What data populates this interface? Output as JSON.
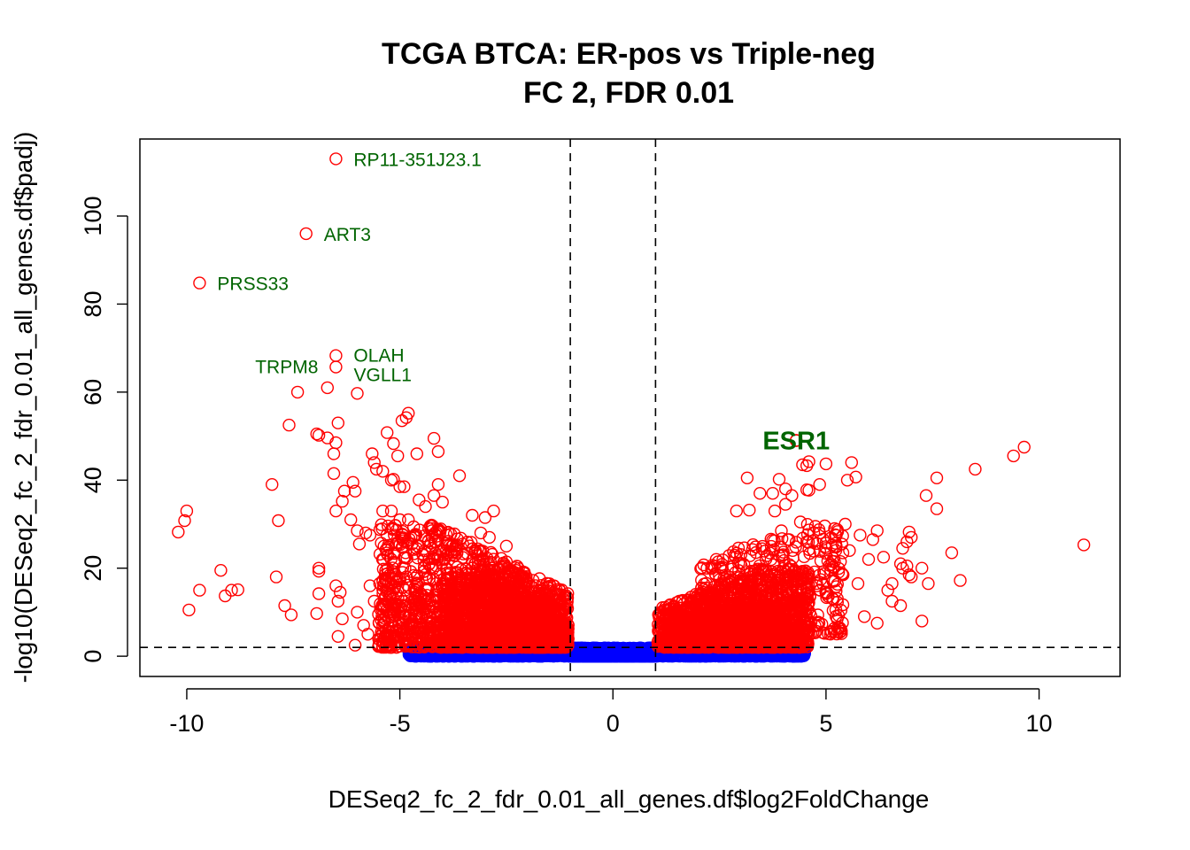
{
  "chart_data": {
    "type": "scatter",
    "title": "TCGA BTCA: ER-pos vs Triple-neg",
    "subtitle": "FC 2, FDR 0.01",
    "xlabel": "DESeq2_fc_2_fdr_0.01_all_genes.df$log2FoldChange",
    "ylabel": "-log10(DESeq2_fc_2_fdr_0.01_all_genes.df$padj)",
    "xlim": [
      -11.1,
      11.9
    ],
    "ylim": [
      -4.6,
      117.5
    ],
    "x_ticks": [
      -10,
      -5,
      0,
      5,
      10
    ],
    "y_ticks": [
      0,
      20,
      40,
      60,
      80,
      100
    ],
    "grid": false,
    "marker": "open-circle",
    "thresholds": {
      "log2fc": [
        -1,
        1
      ],
      "neg_log10_padj": 2
    },
    "colors": {
      "significant": "#ff0000",
      "not_significant": "#0000ff",
      "label": "#006400",
      "threshold_line": "#000000"
    },
    "labeled_genes": [
      {
        "name": "RP11-351J23.1",
        "x": -6.5,
        "y": 113.0,
        "size": "normal"
      },
      {
        "name": "ART3",
        "x": -7.2,
        "y": 96.0,
        "size": "normal"
      },
      {
        "name": "PRSS33",
        "x": -9.7,
        "y": 84.8,
        "size": "normal"
      },
      {
        "name": "OLAH",
        "x": -6.5,
        "y": 68.3,
        "size": "normal"
      },
      {
        "name": "TRPM8",
        "x": -6.5,
        "y": 65.7,
        "size": "normal"
      },
      {
        "name": "VGLL1",
        "x": -6.0,
        "y": 59.7,
        "size": "normal"
      },
      {
        "name": "ESR1",
        "x": 4.3,
        "y": 49.0,
        "size": "large"
      }
    ],
    "significant_points": [
      [
        -10.2,
        28.2
      ],
      [
        -10.0,
        33.0
      ],
      [
        -10.05,
        30.8
      ],
      [
        -9.95,
        10.5
      ],
      [
        -9.7,
        15.0
      ],
      [
        -9.2,
        19.5
      ],
      [
        -9.1,
        13.7
      ],
      [
        -8.95,
        15.0
      ],
      [
        -8.8,
        15.1
      ],
      [
        -8.0,
        39.0
      ],
      [
        -7.85,
        30.8
      ],
      [
        -7.9,
        18.0
      ],
      [
        -7.7,
        11.5
      ],
      [
        -7.55,
        9.4
      ],
      [
        -7.4,
        60.0
      ],
      [
        -7.6,
        52.5
      ],
      [
        -6.95,
        50.5
      ],
      [
        -6.9,
        50.2
      ],
      [
        -6.7,
        49.6
      ],
      [
        -6.5,
        48.5
      ],
      [
        -6.55,
        46.0
      ],
      [
        -6.55,
        41.5
      ],
      [
        -6.45,
        53.0
      ],
      [
        -6.5,
        33.0
      ],
      [
        -6.3,
        37.5
      ],
      [
        -6.35,
        35.2
      ],
      [
        -6.1,
        39.5
      ],
      [
        -6.05,
        37.5
      ],
      [
        -6.15,
        31.0
      ],
      [
        -6.0,
        28.5
      ],
      [
        -5.95,
        25.5
      ],
      [
        -5.8,
        28.0
      ],
      [
        -5.7,
        27.5
      ],
      [
        -6.7,
        61.0
      ],
      [
        -6.9,
        20.0
      ],
      [
        -6.9,
        19.3
      ],
      [
        -6.9,
        14.2
      ],
      [
        -6.95,
        9.7
      ],
      [
        -6.5,
        16.0
      ],
      [
        -6.4,
        14.5
      ],
      [
        -6.45,
        12.5
      ],
      [
        -6.35,
        8.5
      ],
      [
        -6.45,
        4.5
      ],
      [
        -6.05,
        2.5
      ],
      [
        -6.0,
        10.0
      ],
      [
        -5.85,
        7.0
      ],
      [
        -5.75,
        5.0
      ],
      [
        -5.7,
        16.0
      ],
      [
        -5.6,
        12.5
      ],
      [
        -5.5,
        9.5
      ],
      [
        -5.4,
        7.0
      ],
      [
        -5.3,
        4.5
      ],
      [
        -5.65,
        46.0
      ],
      [
        -5.6,
        44.0
      ],
      [
        -5.55,
        42.5
      ],
      [
        -5.4,
        42.0
      ],
      [
        -5.2,
        40.0
      ],
      [
        -5.05,
        45.5
      ],
      [
        -4.95,
        53.5
      ],
      [
        -4.8,
        55.2
      ],
      [
        -4.85,
        54.2
      ],
      [
        -4.2,
        49.5
      ],
      [
        -4.9,
        38.5
      ],
      [
        -4.1,
        46.5
      ],
      [
        -5.15,
        40.2
      ],
      [
        -5.0,
        38.5
      ],
      [
        -4.55,
        35.5
      ],
      [
        -4.4,
        34.0
      ],
      [
        -4.2,
        36.5
      ],
      [
        -4.1,
        39.0
      ],
      [
        -4.0,
        35.0
      ],
      [
        -3.6,
        41.0
      ],
      [
        -5.4,
        33.0
      ],
      [
        -5.2,
        33.0
      ],
      [
        -4.8,
        31.0
      ],
      [
        -3.3,
        32.0
      ],
      [
        -3.0,
        31.5
      ],
      [
        -2.8,
        33.0
      ],
      [
        -3.1,
        28.0
      ],
      [
        -2.9,
        27.0
      ],
      [
        -2.5,
        25.0
      ],
      [
        -5.0,
        31.0
      ],
      [
        -5.3,
        50.8
      ],
      [
        -5.15,
        48.3
      ],
      [
        -4.6,
        46.0
      ]
    ],
    "significant_clusters": [
      {
        "x": [
          -5.5,
          -1.05
        ],
        "y": [
          2.0,
          30.0
        ],
        "n": 1500,
        "seed": 11
      },
      {
        "x": [
          -4.0,
          -1.4
        ],
        "y": [
          2.0,
          19.0
        ],
        "n": 900,
        "seed": 23
      },
      {
        "x": [
          -3.2,
          -1.05
        ],
        "y": [
          2.0,
          11.0
        ],
        "n": 700,
        "seed": 37
      },
      {
        "x": [
          1.05,
          4.6
        ],
        "y": [
          2.0,
          20.0
        ],
        "n": 1300,
        "seed": 41
      },
      {
        "x": [
          1.4,
          3.8
        ],
        "y": [
          2.0,
          12.0
        ],
        "n": 700,
        "seed": 53
      },
      {
        "x": [
          2.0,
          5.4
        ],
        "y": [
          5.0,
          30.0
        ],
        "n": 450,
        "seed": 67
      }
    ],
    "significant_points_right": [
      [
        2.9,
        33.0
      ],
      [
        3.15,
        40.5
      ],
      [
        3.2,
        33.2
      ],
      [
        3.45,
        37.0
      ],
      [
        3.9,
        40.2
      ],
      [
        3.75,
        37.0
      ],
      [
        4.05,
        38.0
      ],
      [
        4.2,
        36.5
      ],
      [
        4.05,
        34.5
      ],
      [
        3.8,
        33.0
      ],
      [
        4.3,
        49.0
      ],
      [
        4.45,
        43.5
      ],
      [
        4.6,
        44.2
      ],
      [
        4.55,
        43.3
      ],
      [
        5.0,
        43.7
      ],
      [
        4.55,
        37.8
      ],
      [
        4.6,
        37.7
      ],
      [
        4.85,
        39.0
      ],
      [
        5.5,
        40.0
      ],
      [
        5.7,
        40.7
      ],
      [
        5.6,
        44.0
      ],
      [
        4.75,
        29.5
      ],
      [
        4.85,
        28.0
      ],
      [
        5.2,
        29.0
      ],
      [
        5.45,
        30.0
      ],
      [
        5.8,
        27.5
      ],
      [
        6.2,
        28.5
      ],
      [
        6.1,
        26.5
      ],
      [
        6.35,
        22.5
      ],
      [
        6.0,
        22.0
      ],
      [
        6.55,
        16.5
      ],
      [
        6.45,
        15.0
      ],
      [
        6.75,
        21.0
      ],
      [
        6.9,
        20.5
      ],
      [
        6.95,
        18.5
      ],
      [
        6.55,
        12.5
      ],
      [
        6.75,
        11.5
      ],
      [
        5.9,
        9.0
      ],
      [
        6.2,
        7.5
      ],
      [
        6.8,
        20.0
      ],
      [
        6.8,
        24.5
      ],
      [
        6.9,
        26.0
      ],
      [
        7.0,
        27.0
      ],
      [
        6.95,
        28.2
      ],
      [
        7.0,
        18.0
      ],
      [
        7.35,
        36.5
      ],
      [
        7.6,
        40.5
      ],
      [
        7.6,
        33.5
      ],
      [
        7.25,
        20.0
      ],
      [
        7.4,
        16.5
      ],
      [
        7.95,
        23.5
      ],
      [
        8.15,
        17.2
      ],
      [
        7.25,
        8.0
      ],
      [
        8.5,
        42.5
      ],
      [
        9.4,
        45.5
      ],
      [
        9.65,
        47.5
      ],
      [
        11.05,
        25.3
      ],
      [
        5.2,
        21.5
      ],
      [
        5.4,
        18.5
      ],
      [
        5.0,
        24.5
      ],
      [
        4.4,
        30.5
      ],
      [
        4.1,
        26.5
      ],
      [
        4.55,
        26.0
      ],
      [
        5.55,
        24.0
      ],
      [
        5.75,
        16.5
      ]
    ],
    "nonsignificant_clusters": [
      {
        "x": [
          -1.05,
          1.0
        ],
        "y": [
          0.0,
          1.9
        ],
        "n": 1700,
        "seed": 71
      },
      {
        "x": [
          -4.8,
          -1.0
        ],
        "y": [
          0.0,
          1.9
        ],
        "n": 650,
        "seed": 83
      },
      {
        "x": [
          1.0,
          4.5
        ],
        "y": [
          0.0,
          1.9
        ],
        "n": 600,
        "seed": 97
      }
    ]
  }
}
